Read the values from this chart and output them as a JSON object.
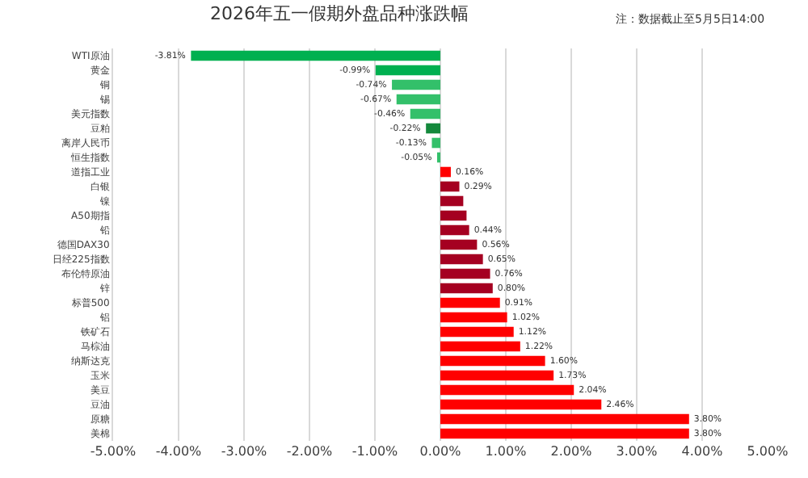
{
  "chart_data": {
    "type": "bar",
    "orientation": "horizontal",
    "title": "2026年五一假期外盘品种涨跌幅",
    "annotations": [
      "注：数据截止至5月5日14:00"
    ],
    "categories": [
      "WTI原油",
      "黄金",
      "铜",
      "锡",
      "美元指数",
      "豆粕",
      "离岸人民币",
      "恒生指数",
      "道指工业",
      "白银",
      "镍",
      "A50期指",
      "铅",
      "德国DAX30",
      "日经225指数",
      "布伦特原油",
      "锌",
      "标普500",
      "铝",
      "铁矿石",
      "马棕油",
      "纳斯达克",
      "玉米",
      "美豆",
      "豆油",
      "原糖",
      "美棉"
    ],
    "values": [
      -3.81,
      -0.99,
      -0.74,
      -0.67,
      -0.46,
      -0.22,
      -0.13,
      -0.05,
      0.16,
      0.29,
      0.35,
      0.4,
      0.44,
      0.56,
      0.65,
      0.76,
      0.8,
      0.91,
      1.02,
      1.12,
      1.22,
      1.6,
      1.73,
      2.04,
      2.46,
      3.8,
      3.8
    ],
    "value_labels": [
      "-3.81%",
      "-0.99%",
      "-0.74%",
      "-0.67%",
      "-0.46%",
      "-0.22%",
      "-0.13%",
      "-0.05%",
      "0.16%",
      "0.29%",
      null,
      null,
      "0.44%",
      "0.56%",
      "0.65%",
      "0.76%",
      "0.80%",
      "0.91%",
      "1.02%",
      "1.12%",
      "1.22%",
      "1.60%",
      "1.73%",
      "2.04%",
      "2.46%",
      "3.80%",
      "3.80%"
    ],
    "colors": [
      "#00b050",
      "#00b050",
      "#33c06a",
      "#33c06a",
      "#33c06a",
      "#14893c",
      "#33c06a",
      "#33c06a",
      "#ff0000",
      "#a50021",
      "#a50021",
      "#a50021",
      "#a50021",
      "#a50021",
      "#a50021",
      "#a50021",
      "#a50021",
      "#ff0000",
      "#ff0000",
      "#ff0000",
      "#ff0000",
      "#ff0000",
      "#ff0000",
      "#ff0000",
      "#ff0000",
      "#ff0000",
      "#ff0000"
    ],
    "xlim": [
      -5,
      5
    ],
    "xticks": [
      {
        "value": -5,
        "label": "-5.00%"
      },
      {
        "value": -4,
        "label": "-4.00%"
      },
      {
        "value": -3,
        "label": "-3.00%"
      },
      {
        "value": -2,
        "label": "-2.00%"
      },
      {
        "value": -1,
        "label": "-1.00%"
      },
      {
        "value": 0,
        "label": "0.00%"
      },
      {
        "value": 1,
        "label": "1.00%"
      },
      {
        "value": 2,
        "label": "2.00%"
      },
      {
        "value": 3,
        "label": "3.00%"
      },
      {
        "value": 4,
        "label": "4.00%"
      },
      {
        "value": 5,
        "label": "5.00%"
      }
    ],
    "grid": "x"
  }
}
